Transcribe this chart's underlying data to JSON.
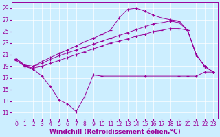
{
  "xlabel": "Windchill (Refroidissement éolien,°C)",
  "bg_color": "#cceeff",
  "line_color": "#990099",
  "grid_color": "#ffffff",
  "xlim": [
    -0.5,
    23.5
  ],
  "ylim": [
    10,
    30
  ],
  "yticks": [
    11,
    13,
    15,
    17,
    19,
    21,
    23,
    25,
    27,
    29
  ],
  "xticks": [
    0,
    1,
    2,
    3,
    4,
    5,
    6,
    7,
    8,
    9,
    10,
    11,
    12,
    13,
    14,
    15,
    16,
    17,
    18,
    19,
    20,
    21,
    22,
    23
  ],
  "series": [
    {
      "x": [
        0,
        1,
        2,
        3,
        4,
        5,
        6,
        7,
        8,
        9,
        10,
        15,
        19,
        20,
        21,
        22,
        23
      ],
      "y": [
        20.3,
        19.0,
        18.5,
        17.3,
        15.5,
        13.2,
        12.5,
        11.2,
        13.8,
        17.5,
        17.3,
        17.3,
        17.3,
        17.3,
        17.3,
        18.0,
        18.0
      ]
    },
    {
      "x": [
        0,
        1,
        2,
        3,
        4,
        5,
        6,
        7,
        8,
        9,
        10,
        11,
        12,
        13,
        14,
        15,
        16,
        17,
        18,
        19,
        20,
        21,
        22,
        23
      ],
      "y": [
        20.0,
        19.0,
        18.7,
        19.0,
        19.5,
        20.0,
        20.5,
        21.0,
        21.5,
        22.0,
        22.5,
        23.0,
        23.3,
        23.7,
        24.2,
        24.5,
        25.0,
        25.2,
        25.5,
        25.5,
        25.2,
        21.0,
        19.0,
        18.0
      ]
    },
    {
      "x": [
        0,
        1,
        2,
        3,
        4,
        5,
        6,
        7,
        8,
        9,
        10,
        11,
        12,
        13,
        14,
        15,
        16,
        17,
        18,
        19,
        20,
        21,
        22,
        23
      ],
      "y": [
        20.3,
        19.2,
        19.0,
        19.5,
        20.2,
        20.8,
        21.3,
        21.8,
        22.3,
        22.8,
        23.3,
        23.8,
        24.3,
        24.8,
        25.3,
        25.8,
        26.3,
        26.5,
        26.8,
        26.5,
        25.2,
        21.0,
        19.0,
        18.0
      ]
    },
    {
      "x": [
        0,
        1,
        2,
        3,
        4,
        5,
        6,
        7,
        8,
        9,
        10,
        11,
        12,
        13,
        14,
        15,
        16,
        17,
        18,
        19,
        20,
        21,
        22,
        23
      ],
      "y": [
        20.3,
        19.2,
        19.0,
        19.8,
        20.5,
        21.2,
        21.8,
        22.5,
        23.2,
        23.8,
        24.5,
        25.2,
        27.3,
        28.8,
        29.0,
        28.5,
        27.8,
        27.3,
        27.0,
        26.8,
        25.2,
        21.0,
        19.0,
        18.0
      ]
    }
  ],
  "tick_fontsize": 5.5,
  "axis_fontsize": 6.5
}
